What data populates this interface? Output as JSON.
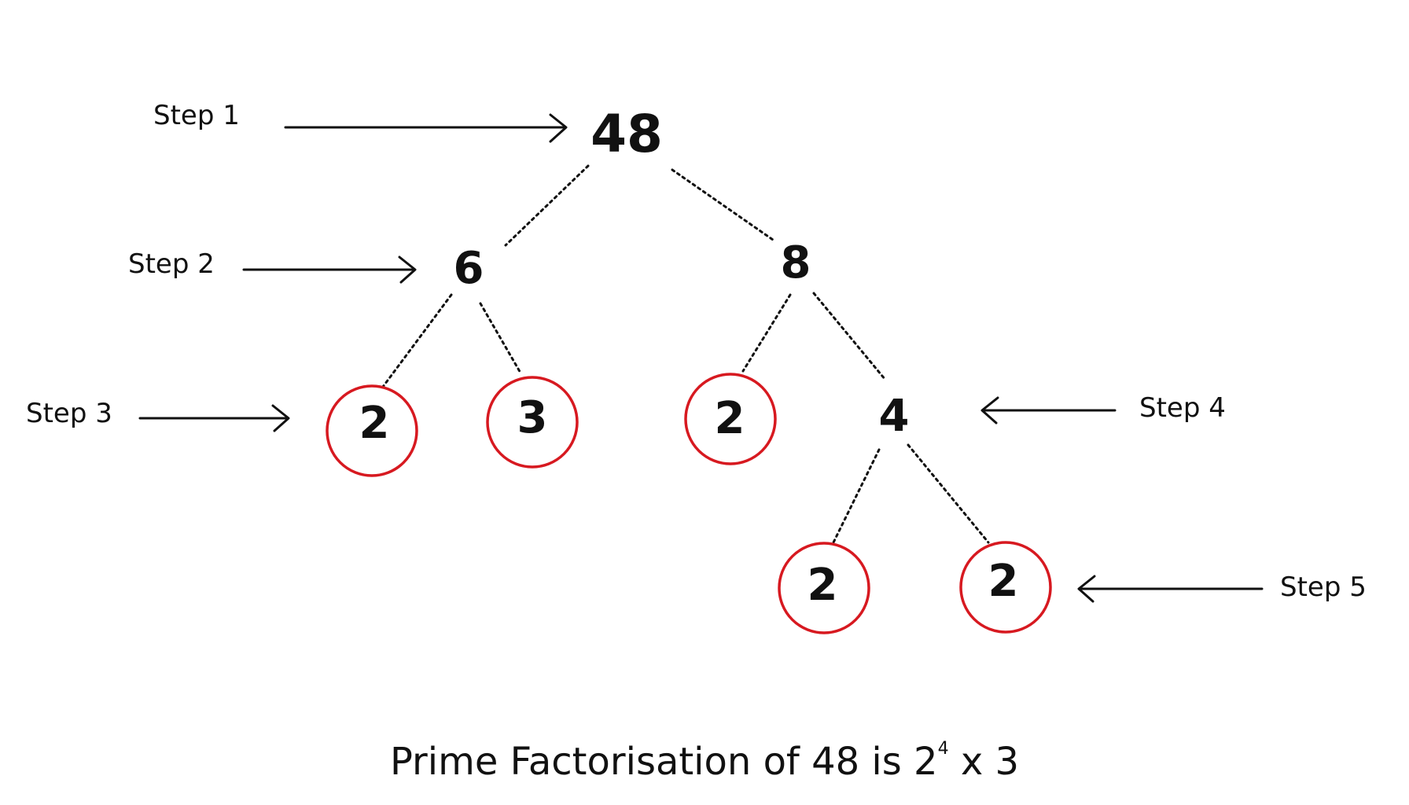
{
  "accent_color": "#d71920",
  "tree": {
    "root": "48",
    "level2_left": "6",
    "level2_right": "8",
    "level3_a": "2",
    "level3_b": "3",
    "level3_c": "2",
    "level3_d": "4",
    "level4_a": "2",
    "level4_b": "2"
  },
  "prime_nodes": [
    "level3_a",
    "level3_b",
    "level3_c",
    "level4_a",
    "level4_b"
  ],
  "steps": {
    "step1": "Step 1",
    "step2": "Step 2",
    "step3": "Step 3",
    "step4": "Step 4",
    "step5": "Step 5"
  },
  "caption": {
    "lead": "Prime Factorisation of 48 is 2",
    "exponent": "4",
    "tail": "x 3"
  }
}
